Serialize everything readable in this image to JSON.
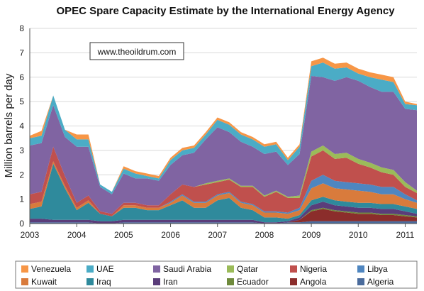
{
  "chart_data": {
    "type": "area",
    "stacked": true,
    "title": "OPEC Spare Capacity Estimate by the International Energy Agency",
    "xlabel": "",
    "ylabel": "Million barrels per day",
    "ylim": [
      0,
      8
    ],
    "xlim": [
      2003.0,
      2011.25
    ],
    "yticks": [
      0,
      1,
      2,
      3,
      4,
      5,
      6,
      7,
      8
    ],
    "xticks": [
      "2003",
      "2004",
      "2005",
      "2006",
      "2007",
      "2008",
      "2009",
      "2010",
      "2011"
    ],
    "grid": "horizontal",
    "legend_position": "bottom",
    "annotation": "www.theoildrum.com",
    "x": [
      2003.0,
      2003.25,
      2003.5,
      2003.75,
      2004.0,
      2004.25,
      2004.5,
      2004.75,
      2005.0,
      2005.25,
      2005.5,
      2005.75,
      2006.0,
      2006.25,
      2006.5,
      2006.75,
      2007.0,
      2007.25,
      2007.5,
      2007.75,
      2008.0,
      2008.25,
      2008.5,
      2008.75,
      2009.0,
      2009.25,
      2009.5,
      2009.75,
      2010.0,
      2010.25,
      2010.5,
      2010.75,
      2011.0,
      2011.25
    ],
    "series": [
      {
        "name": "Algeria",
        "color": "#4a6b9c",
        "values": [
          0.05,
          0.05,
          0.05,
          0.05,
          0.05,
          0.05,
          0.0,
          0.0,
          0.05,
          0.05,
          0.05,
          0.05,
          0.05,
          0.05,
          0.05,
          0.05,
          0.05,
          0.05,
          0.05,
          0.05,
          0.0,
          0.0,
          0.05,
          0.05,
          0.1,
          0.1,
          0.1,
          0.1,
          0.1,
          0.1,
          0.1,
          0.1,
          0.1,
          0.1
        ]
      },
      {
        "name": "Angola",
        "color": "#8b2d2b",
        "values": [
          0.0,
          0.0,
          0.0,
          0.0,
          0.0,
          0.0,
          0.0,
          0.0,
          0.0,
          0.0,
          0.0,
          0.0,
          0.0,
          0.0,
          0.0,
          0.0,
          0.0,
          0.0,
          0.0,
          0.0,
          0.0,
          0.0,
          0.0,
          0.1,
          0.4,
          0.5,
          0.4,
          0.35,
          0.3,
          0.3,
          0.25,
          0.25,
          0.2,
          0.15
        ]
      },
      {
        "name": "Ecuador",
        "color": "#6f8a3c",
        "values": [
          0.0,
          0.0,
          0.0,
          0.0,
          0.0,
          0.0,
          0.0,
          0.0,
          0.0,
          0.0,
          0.0,
          0.0,
          0.0,
          0.0,
          0.0,
          0.0,
          0.0,
          0.0,
          0.0,
          0.0,
          0.0,
          0.0,
          0.0,
          0.0,
          0.05,
          0.05,
          0.05,
          0.05,
          0.05,
          0.05,
          0.05,
          0.05,
          0.05,
          0.05
        ]
      },
      {
        "name": "Iran",
        "color": "#5a3d7a",
        "values": [
          0.15,
          0.15,
          0.1,
          0.1,
          0.1,
          0.1,
          0.1,
          0.1,
          0.1,
          0.1,
          0.1,
          0.1,
          0.1,
          0.1,
          0.1,
          0.1,
          0.1,
          0.1,
          0.1,
          0.1,
          0.05,
          0.05,
          0.05,
          0.1,
          0.2,
          0.25,
          0.2,
          0.2,
          0.2,
          0.2,
          0.2,
          0.2,
          0.15,
          0.1
        ]
      },
      {
        "name": "Iraq",
        "color": "#2f8a9c",
        "values": [
          0.4,
          0.5,
          2.3,
          1.3,
          0.4,
          0.7,
          0.3,
          0.2,
          0.5,
          0.5,
          0.4,
          0.4,
          0.6,
          0.8,
          0.5,
          0.5,
          0.8,
          0.9,
          0.5,
          0.4,
          0.2,
          0.2,
          0.1,
          0.1,
          0.2,
          0.2,
          0.2,
          0.2,
          0.2,
          0.2,
          0.2,
          0.2,
          0.2,
          0.2
        ]
      },
      {
        "name": "Kuwait",
        "color": "#d97b3c",
        "values": [
          0.2,
          0.2,
          0.1,
          0.1,
          0.1,
          0.1,
          0.0,
          0.0,
          0.1,
          0.1,
          0.1,
          0.1,
          0.1,
          0.2,
          0.2,
          0.2,
          0.2,
          0.2,
          0.2,
          0.2,
          0.2,
          0.2,
          0.2,
          0.2,
          0.5,
          0.55,
          0.5,
          0.5,
          0.5,
          0.45,
          0.4,
          0.4,
          0.3,
          0.25
        ]
      },
      {
        "name": "Libya",
        "color": "#4f86c0",
        "values": [
          0.0,
          0.0,
          0.0,
          0.0,
          0.0,
          0.0,
          0.0,
          0.0,
          0.0,
          0.0,
          0.0,
          0.0,
          0.05,
          0.05,
          0.05,
          0.05,
          0.05,
          0.05,
          0.05,
          0.05,
          0.05,
          0.05,
          0.05,
          0.1,
          0.3,
          0.35,
          0.3,
          0.3,
          0.3,
          0.3,
          0.3,
          0.3,
          0.2,
          0.1
        ]
      },
      {
        "name": "Nigeria",
        "color": "#c0504d",
        "values": [
          0.4,
          0.4,
          0.6,
          0.4,
          0.2,
          0.2,
          0.1,
          0.1,
          0.1,
          0.1,
          0.1,
          0.1,
          0.3,
          0.4,
          0.6,
          0.7,
          0.5,
          0.5,
          0.6,
          0.7,
          0.6,
          0.8,
          0.6,
          0.4,
          1.0,
          1.0,
          0.9,
          1.0,
          0.8,
          0.7,
          0.6,
          0.5,
          0.3,
          0.3
        ]
      },
      {
        "name": "Qatar",
        "color": "#9bbb59",
        "values": [
          0.0,
          0.0,
          0.0,
          0.0,
          0.0,
          0.0,
          0.0,
          0.0,
          0.0,
          0.0,
          0.0,
          0.0,
          0.0,
          0.0,
          0.0,
          0.05,
          0.05,
          0.05,
          0.05,
          0.05,
          0.05,
          0.05,
          0.05,
          0.1,
          0.2,
          0.2,
          0.2,
          0.2,
          0.2,
          0.2,
          0.2,
          0.2,
          0.2,
          0.1
        ]
      },
      {
        "name": "Saudi Arabia",
        "color": "#8064a2",
        "values": [
          2.0,
          2.0,
          1.7,
          1.6,
          2.3,
          2.0,
          1.0,
          0.8,
          1.2,
          1.0,
          1.1,
          1.0,
          1.2,
          1.2,
          1.4,
          1.8,
          2.2,
          1.9,
          1.8,
          1.6,
          1.7,
          1.6,
          1.3,
          1.7,
          3.1,
          2.8,
          3.0,
          3.1,
          3.2,
          3.1,
          3.1,
          3.2,
          3.0,
          3.3
        ]
      },
      {
        "name": "UAE",
        "color": "#4bacc6",
        "values": [
          0.3,
          0.3,
          0.4,
          0.3,
          0.3,
          0.3,
          0.1,
          0.1,
          0.2,
          0.2,
          0.1,
          0.1,
          0.2,
          0.2,
          0.2,
          0.2,
          0.3,
          0.3,
          0.3,
          0.3,
          0.3,
          0.3,
          0.2,
          0.3,
          0.4,
          0.6,
          0.5,
          0.4,
          0.3,
          0.4,
          0.5,
          0.4,
          0.2,
          0.2
        ]
      },
      {
        "name": "Venezuela",
        "color": "#f79646",
        "values": [
          0.1,
          0.2,
          0.0,
          0.0,
          0.2,
          0.2,
          0.0,
          0.0,
          0.1,
          0.1,
          0.1,
          0.1,
          0.1,
          0.1,
          0.1,
          0.1,
          0.1,
          0.1,
          0.1,
          0.1,
          0.1,
          0.1,
          0.1,
          0.1,
          0.2,
          0.2,
          0.2,
          0.2,
          0.2,
          0.2,
          0.2,
          0.2,
          0.1,
          0.05
        ]
      }
    ],
    "legend_order": [
      "Venezuela",
      "UAE",
      "Saudi Arabia",
      "Qatar",
      "Nigeria",
      "Libya",
      "Kuwait",
      "Iraq",
      "Iran",
      "Ecuador",
      "Angola",
      "Algeria"
    ]
  }
}
